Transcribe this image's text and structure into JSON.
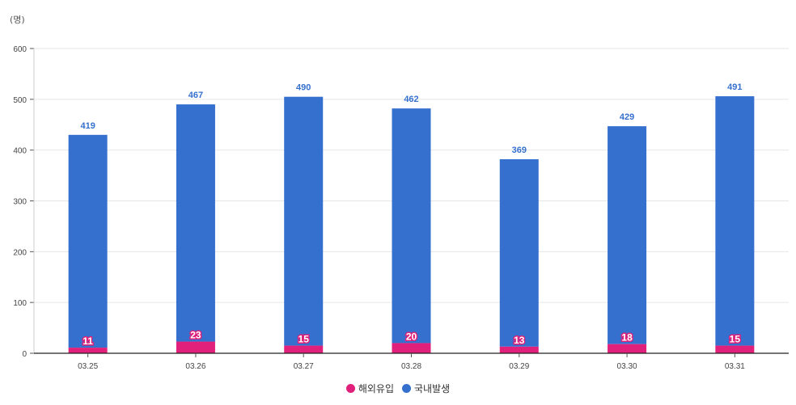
{
  "chart_data": {
    "type": "bar",
    "stacked": true,
    "unit_label": "(명)",
    "categories": [
      "03.25",
      "03.26",
      "03.27",
      "03.28",
      "03.29",
      "03.30",
      "03.31"
    ],
    "series": [
      {
        "name": "해외유입",
        "color": "#e0207a",
        "values": [
          11,
          23,
          15,
          20,
          13,
          18,
          15
        ]
      },
      {
        "name": "국내발생",
        "color": "#3570cf",
        "values": [
          419,
          467,
          490,
          462,
          369,
          429,
          491
        ]
      }
    ],
    "ylim": [
      0,
      600
    ],
    "yticks": [
      0,
      100,
      200,
      300,
      400,
      500,
      600
    ],
    "grid": true,
    "legend_position": "bottom-center"
  }
}
